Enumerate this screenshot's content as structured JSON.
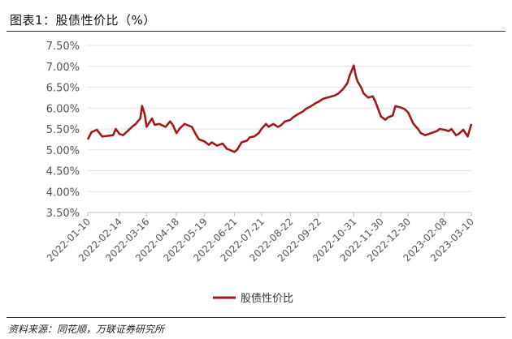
{
  "figure": {
    "title": "图表1：股债性价比（%）",
    "source": "资料来源：同花顺，万联证券研究所"
  },
  "chart_data": {
    "type": "line",
    "title": "",
    "xlabel": "",
    "ylabel": "",
    "ylim": [
      3.5,
      7.5
    ],
    "y_ticks": [
      "7.50%",
      "7.00%",
      "6.50%",
      "6.00%",
      "5.50%",
      "5.00%",
      "4.50%",
      "4.00%",
      "3.50%"
    ],
    "y_tick_values": [
      7.5,
      7.0,
      6.5,
      6.0,
      5.5,
      5.0,
      4.5,
      4.0,
      3.5
    ],
    "x_ticks": [
      "2022-01-10",
      "2022-02-14",
      "2022-03-16",
      "2022-04-18",
      "2022-05-19",
      "2022-06-21",
      "2022-07-21",
      "2022-08-22",
      "2022-09-22",
      "2022-10-31",
      "2022-11-30",
      "2022-12-30",
      "2023-02-08",
      "2023-03-10"
    ],
    "grid": true,
    "legend_position": "bottom",
    "series_color": "#a01a1a",
    "series": [
      {
        "name": "股债性价比",
        "x": [
          "2022-01-10",
          "2022-01-14",
          "2022-01-20",
          "2022-01-26",
          "2022-02-07",
          "2022-02-10",
          "2022-02-14",
          "2022-02-18",
          "2022-02-23",
          "2022-02-28",
          "2022-03-04",
          "2022-03-09",
          "2022-03-11",
          "2022-03-14",
          "2022-03-16",
          "2022-03-18",
          "2022-03-22",
          "2022-03-25",
          "2022-03-30",
          "2022-04-06",
          "2022-04-11",
          "2022-04-14",
          "2022-04-18",
          "2022-04-22",
          "2022-04-27",
          "2022-05-05",
          "2022-05-10",
          "2022-05-13",
          "2022-05-19",
          "2022-05-24",
          "2022-05-27",
          "2022-06-02",
          "2022-06-08",
          "2022-06-13",
          "2022-06-16",
          "2022-06-21",
          "2022-06-24",
          "2022-06-29",
          "2022-07-05",
          "2022-07-08",
          "2022-07-13",
          "2022-07-18",
          "2022-07-21",
          "2022-07-26",
          "2022-07-29",
          "2022-08-03",
          "2022-08-08",
          "2022-08-11",
          "2022-08-16",
          "2022-08-22",
          "2022-08-25",
          "2022-08-30",
          "2022-09-05",
          "2022-09-08",
          "2022-09-14",
          "2022-09-19",
          "2022-09-22",
          "2022-09-27",
          "2022-10-10",
          "2022-10-14",
          "2022-10-19",
          "2022-10-24",
          "2022-10-26",
          "2022-10-31",
          "2022-11-02",
          "2022-11-04",
          "2022-11-08",
          "2022-11-11",
          "2022-11-16",
          "2022-11-21",
          "2022-11-24",
          "2022-11-30",
          "2022-12-05",
          "2022-12-08",
          "2022-12-13",
          "2022-12-16",
          "2022-12-21",
          "2022-12-26",
          "2022-12-30",
          "2023-01-05",
          "2023-01-10",
          "2023-01-13",
          "2023-01-18",
          "2023-01-31",
          "2023-02-03",
          "2023-02-08",
          "2023-02-13",
          "2023-02-16",
          "2023-02-21",
          "2023-02-24",
          "2023-03-01",
          "2023-03-06",
          "2023-03-10"
        ],
        "values": [
          5.25,
          5.42,
          5.48,
          5.32,
          5.35,
          5.5,
          5.38,
          5.35,
          5.45,
          5.55,
          5.62,
          5.75,
          6.05,
          5.85,
          5.55,
          5.62,
          5.75,
          5.6,
          5.62,
          5.55,
          5.68,
          5.6,
          5.4,
          5.52,
          5.62,
          5.55,
          5.35,
          5.25,
          5.2,
          5.12,
          5.18,
          5.1,
          5.15,
          5.02,
          5.0,
          4.95,
          5.0,
          5.18,
          5.22,
          5.3,
          5.32,
          5.4,
          5.5,
          5.62,
          5.55,
          5.62,
          5.55,
          5.58,
          5.68,
          5.72,
          5.78,
          5.85,
          5.92,
          5.98,
          6.05,
          6.12,
          6.15,
          6.22,
          6.3,
          6.35,
          6.45,
          6.6,
          6.75,
          7.02,
          6.8,
          6.65,
          6.5,
          6.35,
          6.25,
          6.28,
          6.15,
          5.8,
          5.72,
          5.78,
          5.82,
          6.05,
          6.02,
          5.98,
          5.9,
          5.62,
          5.5,
          5.4,
          5.35,
          5.45,
          5.5,
          5.48,
          5.45,
          5.5,
          5.35,
          5.38,
          5.48,
          5.32,
          5.62
        ]
      }
    ]
  }
}
